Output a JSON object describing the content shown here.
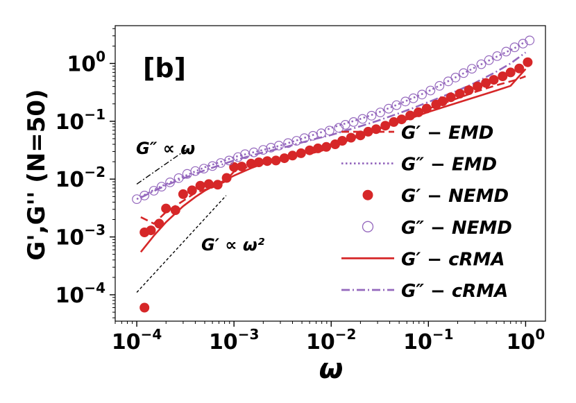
{
  "chart_data": {
    "type": "scatter",
    "panel_label": "[b]",
    "xlabel": "ω",
    "ylabel": "G',G'' (N=50)",
    "xscale": "log",
    "yscale": "log",
    "xlim": [
      6e-05,
      1.6
    ],
    "ylim": [
      3.5e-05,
      4.5
    ],
    "xticks": [
      {
        "value": 0.0001,
        "base": "10",
        "exp": "−4"
      },
      {
        "value": 0.001,
        "base": "10",
        "exp": "−3"
      },
      {
        "value": 0.01,
        "base": "10",
        "exp": "−2"
      },
      {
        "value": 0.1,
        "base": "10",
        "exp": "−1"
      },
      {
        "value": 1,
        "base": "10",
        "exp": "0"
      }
    ],
    "yticks": [
      {
        "value": 0.0001,
        "base": "10",
        "exp": "−4"
      },
      {
        "value": 0.001,
        "base": "10",
        "exp": "−3"
      },
      {
        "value": 0.01,
        "base": "10",
        "exp": "−2"
      },
      {
        "value": 0.1,
        "base": "10",
        "exp": "−1"
      },
      {
        "value": 1,
        "base": "10",
        "exp": "0"
      }
    ],
    "legend": [
      {
        "label": "G′ − EMD",
        "style": "dashed",
        "color": "#d62728"
      },
      {
        "label": "G″ − EMD",
        "style": "dotted",
        "color": "#9467bd"
      },
      {
        "label": "G′ − NEMD",
        "style": "filled-circle",
        "color": "#d62728"
      },
      {
        "label": "G″ − NEMD",
        "style": "open-circle",
        "color": "#9467bd"
      },
      {
        "label": "G′ − cRMA",
        "style": "solid",
        "color": "#d62728"
      },
      {
        "label": "G″ − cRMA",
        "style": "dashdot",
        "color": "#9467bd"
      }
    ],
    "legend_position": "lower-right",
    "annotations": [
      {
        "text": "G″ ∝ ω",
        "guide": {
          "x": [
            0.0001,
            0.00032
          ],
          "y": [
            0.0082,
            0.032
          ]
        }
      },
      {
        "text": "G′ ∝ ω²",
        "guide": {
          "x": [
            0.0001,
            0.00083
          ],
          "y": [
            0.00011,
            0.0052
          ]
        }
      }
    ],
    "series": [
      {
        "name": "G′ − NEMD",
        "x": [
          0.00012,
          0.00012,
          0.00014,
          0.00017,
          0.0002,
          0.00025,
          0.0003,
          0.00037,
          0.00045,
          0.00055,
          0.00068,
          0.00084,
          0.001,
          0.0012,
          0.0015,
          0.0018,
          0.0022,
          0.0027,
          0.0033,
          0.004,
          0.0049,
          0.006,
          0.0073,
          0.0089,
          0.011,
          0.013,
          0.016,
          0.02,
          0.024,
          0.029,
          0.036,
          0.044,
          0.053,
          0.065,
          0.079,
          0.096,
          0.12,
          0.14,
          0.17,
          0.21,
          0.26,
          0.32,
          0.39,
          0.47,
          0.58,
          0.7,
          0.86,
          1.05
        ],
        "y": [
          6e-05,
          0.0012,
          0.0013,
          0.0017,
          0.0031,
          0.0029,
          0.0055,
          0.0064,
          0.0077,
          0.0082,
          0.008,
          0.0105,
          0.0162,
          0.0165,
          0.0185,
          0.0195,
          0.0205,
          0.021,
          0.023,
          0.0255,
          0.028,
          0.0315,
          0.034,
          0.036,
          0.04,
          0.046,
          0.052,
          0.057,
          0.066,
          0.073,
          0.084,
          0.097,
          0.108,
          0.126,
          0.143,
          0.166,
          0.195,
          0.222,
          0.26,
          0.3,
          0.345,
          0.4,
          0.46,
          0.52,
          0.6,
          0.7,
          0.82,
          1.05
        ]
      },
      {
        "name": "G″ − NEMD",
        "x": [
          0.0001,
          0.00012,
          0.00015,
          0.00018,
          0.00022,
          0.00027,
          0.00033,
          0.0004,
          0.00049,
          0.0006,
          0.00073,
          0.00089,
          0.0011,
          0.0013,
          0.0016,
          0.002,
          0.0024,
          0.0029,
          0.0036,
          0.0044,
          0.0053,
          0.0065,
          0.0079,
          0.0096,
          0.012,
          0.014,
          0.017,
          0.021,
          0.026,
          0.032,
          0.039,
          0.047,
          0.058,
          0.07,
          0.086,
          0.105,
          0.13,
          0.16,
          0.19,
          0.23,
          0.28,
          0.35,
          0.42,
          0.51,
          0.63,
          0.77,
          0.94,
          1.1
        ],
        "y": [
          0.0045,
          0.0052,
          0.0063,
          0.0074,
          0.0088,
          0.0104,
          0.0123,
          0.0138,
          0.0152,
          0.0168,
          0.019,
          0.021,
          0.024,
          0.027,
          0.029,
          0.032,
          0.035,
          0.038,
          0.042,
          0.046,
          0.051,
          0.056,
          0.062,
          0.069,
          0.077,
          0.087,
          0.097,
          0.11,
          0.125,
          0.142,
          0.165,
          0.19,
          0.22,
          0.25,
          0.29,
          0.34,
          0.41,
          0.49,
          0.57,
          0.68,
          0.81,
          0.97,
          1.14,
          1.34,
          1.6,
          1.9,
          2.2,
          2.5
        ]
      },
      {
        "name": "G′ − EMD",
        "x": [
          0.00011,
          0.00015,
          0.0002,
          0.0003,
          0.0004,
          0.0006,
          0.0008,
          0.001,
          0.0015,
          0.002,
          0.003,
          0.005,
          0.008,
          0.01,
          0.02,
          0.03,
          0.05,
          0.08,
          0.1,
          0.2,
          0.3,
          0.5,
          0.8,
          1.0
        ],
        "y": [
          0.0022,
          0.0017,
          0.0027,
          0.0042,
          0.0058,
          0.0072,
          0.009,
          0.0135,
          0.017,
          0.0195,
          0.0215,
          0.0255,
          0.031,
          0.036,
          0.056,
          0.072,
          0.1,
          0.14,
          0.165,
          0.25,
          0.32,
          0.42,
          0.52,
          0.6
        ]
      },
      {
        "name": "G″ − EMD",
        "x": [
          0.0001,
          0.00015,
          0.0002,
          0.0003,
          0.0005,
          0.0008,
          0.001,
          0.002,
          0.003,
          0.005,
          0.008,
          0.01,
          0.02,
          0.03,
          0.05,
          0.08,
          0.1,
          0.2,
          0.3,
          0.5,
          0.8,
          1.0
        ],
        "y": [
          0.0045,
          0.0065,
          0.0082,
          0.011,
          0.016,
          0.021,
          0.024,
          0.032,
          0.038,
          0.05,
          0.065,
          0.077,
          0.11,
          0.14,
          0.2,
          0.28,
          0.33,
          0.6,
          0.85,
          1.3,
          1.9,
          2.4
        ]
      },
      {
        "name": "G′ − cRMA",
        "x": [
          0.00011,
          0.00015,
          0.0002,
          0.0003,
          0.0004,
          0.0005,
          0.0007,
          0.001,
          0.0015,
          0.002,
          0.003,
          0.005,
          0.007,
          0.01,
          0.02,
          0.03,
          0.05,
          0.07,
          0.1,
          0.2,
          0.3,
          0.5,
          0.7,
          1.0
        ],
        "y": [
          0.00055,
          0.00105,
          0.0018,
          0.0034,
          0.0049,
          0.0063,
          0.0085,
          0.0115,
          0.0155,
          0.0185,
          0.0225,
          0.0285,
          0.0345,
          0.0405,
          0.059,
          0.074,
          0.097,
          0.117,
          0.145,
          0.21,
          0.26,
          0.34,
          0.41,
          0.8
        ]
      },
      {
        "name": "G″ − cRMA",
        "x": [
          0.00011,
          0.00015,
          0.0002,
          0.0003,
          0.0005,
          0.0007,
          0.001,
          0.0015,
          0.002,
          0.003,
          0.005,
          0.007,
          0.01,
          0.02,
          0.03,
          0.05,
          0.07,
          0.1,
          0.2,
          0.3,
          0.5,
          0.7,
          1.0
        ],
        "y": [
          0.0048,
          0.0062,
          0.0078,
          0.0103,
          0.0142,
          0.0172,
          0.021,
          0.0255,
          0.029,
          0.034,
          0.043,
          0.05,
          0.058,
          0.082,
          0.102,
          0.138,
          0.17,
          0.215,
          0.34,
          0.46,
          0.72,
          1.0,
          1.55
        ]
      }
    ]
  }
}
